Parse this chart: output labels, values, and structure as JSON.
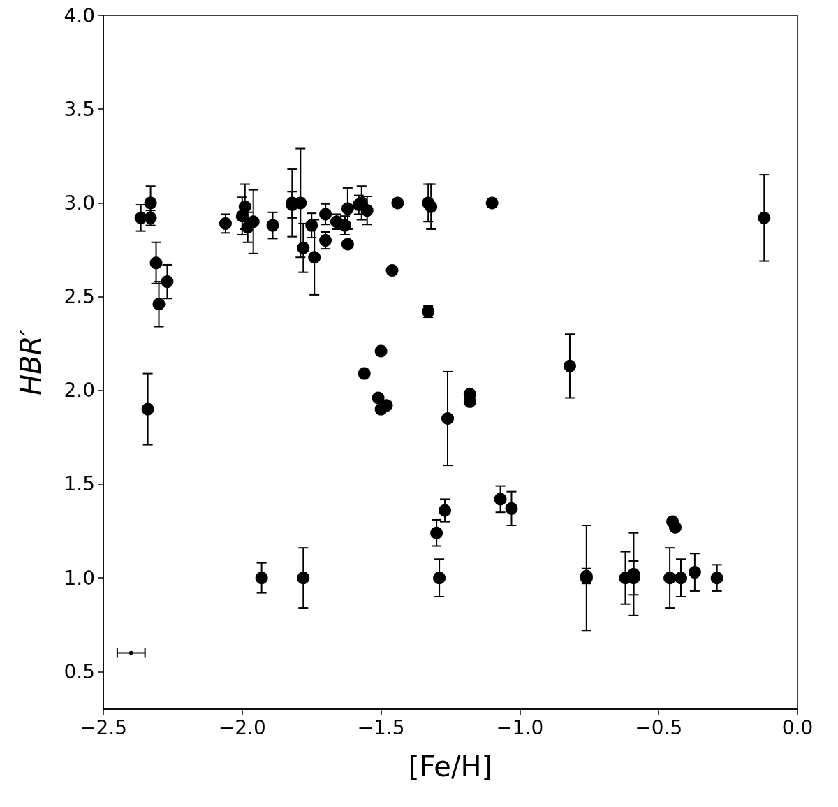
{
  "chart_data": {
    "type": "scatter",
    "xlabel": "[Fe/H]",
    "ylabel": "HBR′",
    "xlim": [
      -2.5,
      0
    ],
    "ylim": [
      0.3,
      4.0
    ],
    "xticks": [
      {
        "value": -2.5,
        "label": "−2.5"
      },
      {
        "value": -2.0,
        "label": "−2.0"
      },
      {
        "value": -1.5,
        "label": "−1.5"
      },
      {
        "value": -1.0,
        "label": "−1.0"
      },
      {
        "value": -0.5,
        "label": "−0.5"
      },
      {
        "value": 0,
        "label": "0.0"
      }
    ],
    "yticks": [
      0.5,
      {
        "value": 1,
        "label": "1.0"
      },
      1.5,
      {
        "value": 2,
        "label": "2.0"
      },
      2.5,
      {
        "value": 3,
        "label": "3.0"
      },
      3.5,
      {
        "value": 4,
        "label": "4.0"
      }
    ],
    "grid": false,
    "marker": "circle",
    "series": [
      {
        "color": "#000000",
        "x": [
          -2.365,
          -2.33,
          -2.33,
          -2.31,
          -2.3,
          -2.27,
          -2.34,
          -2.06,
          -2.0,
          -1.99,
          -1.98,
          -1.96,
          -1.89,
          -1.82,
          -1.82,
          -1.79,
          -1.78,
          -1.75,
          -1.74,
          -1.7,
          -1.7,
          -1.66,
          -1.63,
          -1.62,
          -1.62,
          -1.58,
          -1.57,
          -1.55,
          -1.44,
          -1.33,
          -1.32,
          -1.1,
          -1.46,
          -1.33,
          -1.5,
          -1.56,
          -1.51,
          -1.5,
          -1.48,
          -1.26,
          -1.18,
          -1.18,
          -0.82,
          -0.12,
          -1.27,
          -1.3,
          -1.29,
          -1.07,
          -1.03,
          -0.76,
          -0.76,
          -0.62,
          -0.59,
          -0.59,
          -0.46,
          -0.45,
          -0.44,
          -0.42,
          -0.37,
          -0.29,
          -1.93,
          -1.78
        ],
        "values": [
          2.92,
          3.0,
          2.92,
          2.68,
          2.46,
          2.58,
          1.9,
          2.89,
          2.93,
          2.98,
          2.87,
          2.9,
          2.88,
          3.0,
          2.99,
          3.0,
          2.76,
          2.88,
          2.71,
          2.94,
          2.8,
          2.9,
          2.88,
          2.97,
          2.78,
          2.99,
          3.0,
          2.96,
          3.0,
          3.0,
          2.98,
          3.0,
          2.64,
          2.42,
          2.21,
          2.09,
          1.96,
          1.9,
          1.92,
          1.85,
          1.98,
          1.94,
          2.13,
          2.92,
          1.36,
          1.24,
          1.0,
          1.42,
          1.37,
          1.0,
          1.01,
          1.0,
          1.02,
          1.0,
          1.0,
          1.3,
          1.27,
          1.0,
          1.03,
          1.0,
          1.0,
          1.0
        ],
        "errors": [
          0.07,
          0.09,
          0.04,
          0.11,
          0.12,
          0.09,
          0.19,
          0.05,
          0.1,
          0.12,
          0.08,
          0.17,
          0.07,
          0.18,
          0.07,
          0.29,
          0.13,
          0.065,
          0.2,
          0.055,
          0.045,
          0.04,
          0.05,
          0.11,
          null,
          0.05,
          0.09,
          0.075,
          null,
          0.1,
          0.12,
          0.02,
          null,
          0.03,
          null,
          0.02,
          null,
          0.02,
          0.02,
          0.25,
          null,
          null,
          0.17,
          0.23,
          0.06,
          0.07,
          0.1,
          0.07,
          0.09,
          0.28,
          0.04,
          0.14,
          0.22,
          0.09,
          0.16,
          null,
          null,
          0.1,
          0.1,
          0.07,
          0.08,
          0.16
        ]
      },
      {
        "color": "#000000",
        "x": [
          -2.4
        ],
        "values": [
          0.6
        ],
        "xerrors": [
          0.05
        ]
      }
    ]
  }
}
